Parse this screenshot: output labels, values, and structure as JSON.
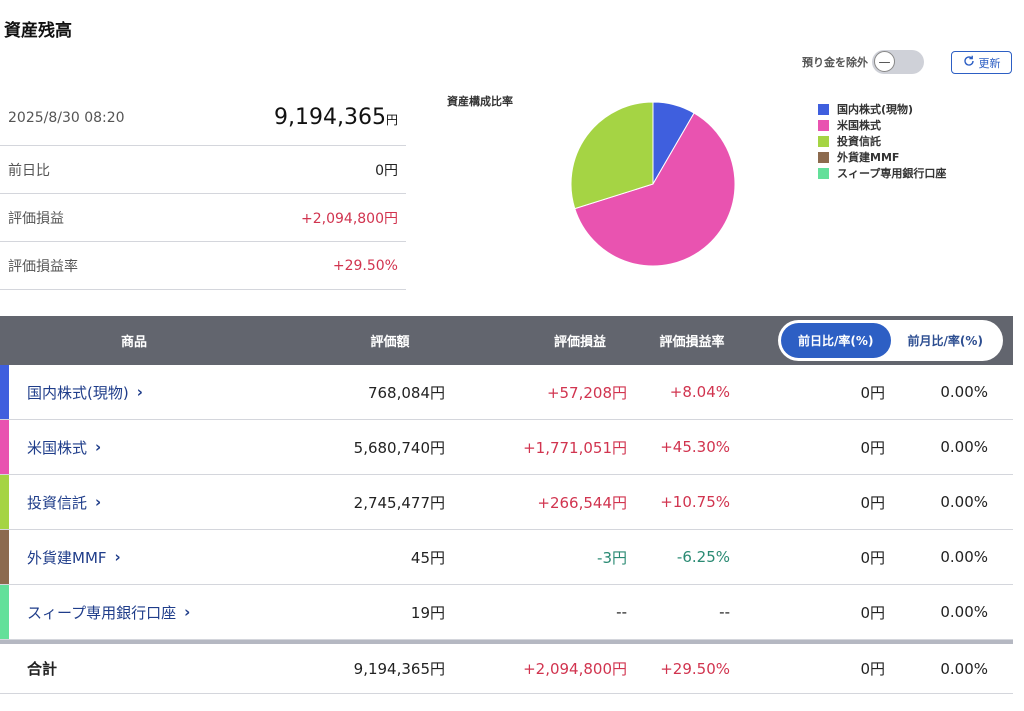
{
  "page_title": "資産残高",
  "controls": {
    "exclude_label": "預り金を除外",
    "toggle_symbol": "—",
    "refresh_icon": "refresh-icon",
    "refresh_label": "更新"
  },
  "summary": {
    "datetime": "2025/8/30 08:20",
    "total_value": "9,194,365",
    "total_unit": "円",
    "rows": [
      {
        "label": "前日比",
        "value": "0円"
      },
      {
        "label": "評価損益",
        "value": "+2,094,800円"
      },
      {
        "label": "評価損益率",
        "value": "+29.50%"
      }
    ]
  },
  "chart_data": {
    "type": "pie",
    "title": "資産構成比率",
    "categories": [
      "国内株式(現物)",
      "米国株式",
      "投資信託",
      "外貨建MMF",
      "スィープ専用銀行口座"
    ],
    "values": [
      768084,
      5680740,
      2745477,
      45,
      19
    ],
    "colors": [
      "#3f5fde",
      "#e953b0",
      "#a5d444",
      "#8c6a4e",
      "#63e09a"
    ],
    "legend_position": "right"
  },
  "table": {
    "headers": {
      "name": "商品",
      "value": "評価額",
      "pl": "評価損益",
      "pl_rate": "評価損益率"
    },
    "toggle": {
      "active": "前日比/率(%)",
      "inactive": "前月比/率(%)"
    },
    "rows": [
      {
        "name": "国内株式(現物)",
        "chevron": "›",
        "value": "768,084円",
        "pl": "+57,208円",
        "pl_rate": "+8.04%",
        "diff": "0円",
        "diff_rate": "0.00%",
        "color": "#3f5fde",
        "sign": "pos"
      },
      {
        "name": "米国株式",
        "chevron": "›",
        "value": "5,680,740円",
        "pl": "+1,771,051円",
        "pl_rate": "+45.30%",
        "diff": "0円",
        "diff_rate": "0.00%",
        "color": "#e953b0",
        "sign": "pos"
      },
      {
        "name": "投資信託",
        "chevron": "›",
        "value": "2,745,477円",
        "pl": "+266,544円",
        "pl_rate": "+10.75%",
        "diff": "0円",
        "diff_rate": "0.00%",
        "color": "#a5d444",
        "sign": "pos"
      },
      {
        "name": "外貨建MMF",
        "chevron": "›",
        "value": "45円",
        "pl": "-3円",
        "pl_rate": "-6.25%",
        "diff": "0円",
        "diff_rate": "0.00%",
        "color": "#8c6a4e",
        "sign": "neg"
      },
      {
        "name": "スィープ専用銀行口座",
        "chevron": "›",
        "value": "19円",
        "pl": "--",
        "pl_rate": "--",
        "diff": "0円",
        "diff_rate": "0.00%",
        "color": "#63e09a",
        "sign": "none"
      }
    ],
    "total": {
      "label": "合計",
      "value": "9,194,365円",
      "pl": "+2,094,800円",
      "pl_rate": "+29.50%",
      "diff": "0円",
      "diff_rate": "0.00%"
    }
  }
}
